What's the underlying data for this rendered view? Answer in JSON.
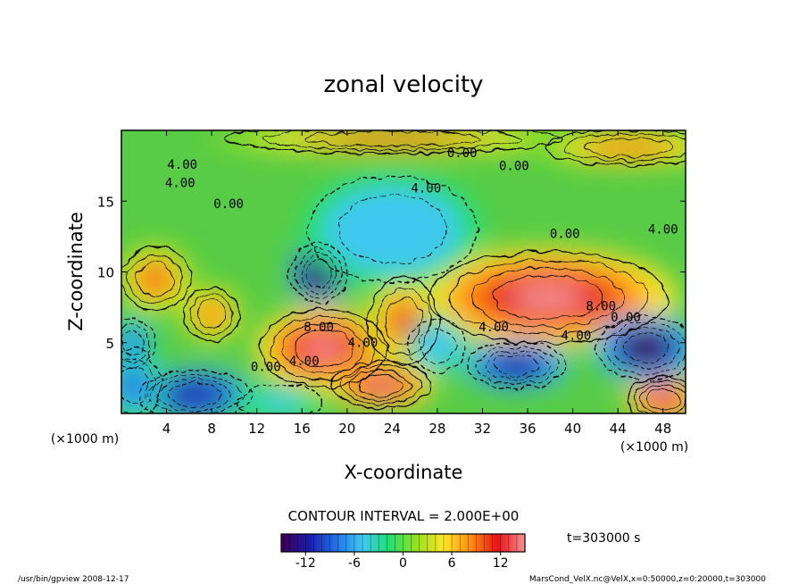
{
  "chart_data": {
    "type": "heatmap",
    "title": "zonal velocity",
    "xlabel": "X-coordinate",
    "ylabel": "Z-coordinate",
    "x_unit": "(×1000 m)",
    "y_unit": "(×1000 m)",
    "xlim": [
      0,
      50
    ],
    "ylim": [
      0,
      20
    ],
    "x_ticks": [
      4,
      8,
      12,
      16,
      20,
      24,
      28,
      32,
      36,
      40,
      44,
      48
    ],
    "y_ticks": [
      5,
      10,
      15
    ],
    "contour_interval_text": "CONTOUR INTERVAL = 2.000E+00",
    "time_label": "t=303000  s",
    "colorbar": {
      "min": -15,
      "max": 15,
      "ticks": [
        -12,
        -6,
        0,
        6,
        12
      ],
      "colors": [
        "#3c0050",
        "#1a1aa8",
        "#1f6fe6",
        "#3fc8f0",
        "#20e070",
        "#96e01c",
        "#ffe628",
        "#ff8c14",
        "#e61414",
        "#f59090"
      ]
    },
    "contour_labels": [
      {
        "text": "0.00",
        "x": 30.2,
        "z": 18.1
      },
      {
        "text": "0.00",
        "x": 34.8,
        "z": 17.2
      },
      {
        "text": "4.00",
        "x": 5.4,
        "z": 17.3
      },
      {
        "text": "4.00",
        "x": 5.2,
        "z": 16.0
      },
      {
        "text": "0.00",
        "x": 9.5,
        "z": 14.5
      },
      {
        "text": "4.00",
        "x": 27.0,
        "z": 15.6
      },
      {
        "text": "0.00",
        "x": 39.3,
        "z": 12.4
      },
      {
        "text": "4.00",
        "x": 48.0,
        "z": 12.7
      },
      {
        "text": "8.00",
        "x": 17.5,
        "z": 5.8
      },
      {
        "text": "4.00",
        "x": 21.4,
        "z": 4.7
      },
      {
        "text": "0.00",
        "x": 12.8,
        "z": 3.0
      },
      {
        "text": "4.00",
        "x": 16.2,
        "z": 3.4
      },
      {
        "text": "4.00",
        "x": 33.0,
        "z": 5.8
      },
      {
        "text": "4.00",
        "x": 40.3,
        "z": 5.2
      },
      {
        "text": "0.00",
        "x": 44.7,
        "z": 6.5
      },
      {
        "text": "8.00",
        "x": 42.5,
        "z": 7.3
      }
    ],
    "features": [
      {
        "x": 37.8,
        "z": 8.2,
        "value": 15,
        "rx": 8.5,
        "rz": 2.6
      },
      {
        "x": 17.9,
        "z": 4.6,
        "value": 15,
        "rx": 4.5,
        "rz": 2.2
      },
      {
        "x": 23.0,
        "z": 2.0,
        "value": 13,
        "rx": 3.5,
        "rz": 1.3
      },
      {
        "x": 48.0,
        "z": 1.0,
        "value": 15,
        "rx": 2.5,
        "rz": 1.3
      },
      {
        "x": 3.0,
        "z": 9.5,
        "value": 10,
        "rx": 2.5,
        "rz": 1.8
      },
      {
        "x": 8.0,
        "z": 7.0,
        "value": 8,
        "rx": 2.0,
        "rz": 1.5
      },
      {
        "x": 25.0,
        "z": 6.5,
        "value": 9,
        "rx": 2.5,
        "rz": 2.5
      },
      {
        "x": 24.0,
        "z": 19.4,
        "value": 9,
        "rx": 12.0,
        "rz": 0.8
      },
      {
        "x": 45.0,
        "z": 18.8,
        "value": 8,
        "rx": 6.0,
        "rz": 1.0
      },
      {
        "x": 17.5,
        "z": 9.9,
        "value": -15,
        "rx": 2.0,
        "rz": 1.7
      },
      {
        "x": 24.0,
        "z": 13.0,
        "value": -6,
        "rx": 6.0,
        "rz": 3.0
      },
      {
        "x": 35.0,
        "z": 3.4,
        "value": -11,
        "rx": 3.5,
        "rz": 1.3
      },
      {
        "x": 46.5,
        "z": 4.6,
        "value": -13,
        "rx": 3.5,
        "rz": 1.8
      },
      {
        "x": 6.5,
        "z": 1.3,
        "value": -11,
        "rx": 4.0,
        "rz": 1.4
      },
      {
        "x": 1.0,
        "z": 2.0,
        "value": -9,
        "rx": 2.0,
        "rz": 2.0
      },
      {
        "x": 1.0,
        "z": 5.0,
        "value": -8,
        "rx": 1.5,
        "rz": 1.4
      },
      {
        "x": 28.0,
        "z": 4.8,
        "value": -6,
        "rx": 2.0,
        "rz": 1.5
      },
      {
        "x": 14.0,
        "z": 0.8,
        "value": -4,
        "rx": 3.0,
        "rz": 1.0
      }
    ],
    "grid": false
  },
  "footer": {
    "program": "/usr/bin/gpview   2008-12-17",
    "file_info": "MarsCond_VelX.nc@VelX,x=0:50000,z=0:20000,t=303000"
  }
}
